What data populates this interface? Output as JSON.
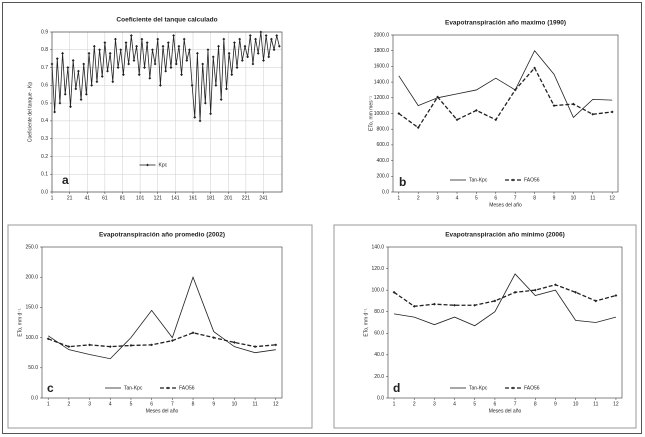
{
  "chart_data": [
    {
      "type": "line",
      "title": "Coeficiente del tanque calculado",
      "y_label": "Coeficiente del tanque - Kp",
      "panel": "a",
      "x": [
        1,
        4,
        7,
        10,
        13,
        16,
        19,
        22,
        25,
        28,
        31,
        34,
        37,
        40,
        43,
        46,
        49,
        52,
        55,
        58,
        61,
        64,
        67,
        70,
        73,
        76,
        79,
        82,
        85,
        88,
        91,
        94,
        97,
        100,
        103,
        106,
        109,
        112,
        115,
        118,
        121,
        124,
        127,
        130,
        133,
        136,
        139,
        142,
        145,
        148,
        151,
        154,
        157,
        160,
        163,
        166,
        169,
        172,
        175,
        178,
        181,
        184,
        187,
        190,
        193,
        196,
        199,
        202,
        205,
        208,
        211,
        214,
        217,
        220,
        223,
        226,
        229,
        232,
        235,
        238,
        241,
        244,
        247,
        250,
        253,
        256,
        259
      ],
      "series": [
        {
          "name": "Kpc",
          "color": "#222222",
          "dashed": false,
          "marker": true,
          "values": [
            0.72,
            0.45,
            0.75,
            0.5,
            0.78,
            0.55,
            0.7,
            0.48,
            0.74,
            0.58,
            0.68,
            0.52,
            0.72,
            0.55,
            0.78,
            0.6,
            0.82,
            0.62,
            0.8,
            0.65,
            0.84,
            0.68,
            0.78,
            0.62,
            0.86,
            0.7,
            0.8,
            0.66,
            0.84,
            0.72,
            0.88,
            0.74,
            0.82,
            0.66,
            0.86,
            0.7,
            0.84,
            0.64,
            0.8,
            0.72,
            0.86,
            0.6,
            0.82,
            0.68,
            0.84,
            0.7,
            0.88,
            0.72,
            0.82,
            0.66,
            0.86,
            0.74,
            0.8,
            0.6,
            0.42,
            0.78,
            0.4,
            0.72,
            0.5,
            0.8,
            0.44,
            0.76,
            0.6,
            0.82,
            0.52,
            0.86,
            0.58,
            0.78,
            0.66,
            0.84,
            0.7,
            0.86,
            0.74,
            0.82,
            0.76,
            0.88,
            0.72,
            0.86,
            0.78,
            0.9,
            0.74,
            0.88,
            0.76,
            0.86,
            0.8,
            0.88,
            0.82
          ]
        }
      ],
      "xlim": [
        1,
        262
      ],
      "xticks": [
        1,
        21,
        41,
        61,
        81,
        101,
        121,
        141,
        161,
        181,
        201,
        221,
        241
      ],
      "ylim": [
        0,
        0.9
      ],
      "yticks": [
        {
          "value": 0,
          "label": "0.0"
        },
        0.1,
        0.2,
        0.3,
        0.4,
        0.5,
        0.6,
        0.7,
        0.8,
        0.9
      ],
      "grid": true
    },
    {
      "type": "line",
      "title": "Evapotranspiración año maximo (1990)",
      "y_label": "ETo, mm mes⁻¹",
      "x_label": "Meses del año",
      "panel": "b",
      "x": [
        1,
        2,
        3,
        4,
        5,
        6,
        7,
        8,
        9,
        10,
        11,
        12
      ],
      "series": [
        {
          "name": "Tan-Kpc",
          "color": "#222222",
          "dashed": false,
          "marker": false,
          "values": [
            1480,
            1100,
            1200,
            1250,
            1300,
            1450,
            1300,
            1800,
            1500,
            950,
            1180,
            1170
          ]
        },
        {
          "name": "FAO56",
          "color": "#222222",
          "dashed": true,
          "marker": true,
          "values": [
            1000,
            820,
            1210,
            920,
            1040,
            920,
            1300,
            1580,
            1100,
            1120,
            990,
            1020
          ]
        }
      ],
      "xlim": [
        0.7,
        12.3
      ],
      "xticks": [
        1,
        2,
        3,
        4,
        5,
        6,
        7,
        8,
        9,
        10,
        11,
        12
      ],
      "ylim": [
        0,
        2000
      ],
      "yticks": [
        {
          "value": 0,
          "label": "0.0"
        },
        {
          "value": 200,
          "label": "200.0"
        },
        {
          "value": 400,
          "label": "400.0"
        },
        {
          "value": 600,
          "label": "600.0"
        },
        {
          "value": 800,
          "label": "800.0"
        },
        {
          "value": 1000,
          "label": "1000.0"
        },
        {
          "value": 1200,
          "label": "1200.0"
        },
        {
          "value": 1400,
          "label": "1400.0"
        },
        {
          "value": 1600,
          "label": "1600.0"
        },
        {
          "value": 1800,
          "label": "1800.0"
        },
        {
          "value": 2000,
          "label": "2000.0"
        }
      ],
      "grid": false
    },
    {
      "type": "line",
      "title": "Evapotranspiración año promedio (2002)",
      "y_label": "ETo, mm d⁻¹",
      "x_label": "Meses del año",
      "panel": "c",
      "x": [
        1,
        2,
        3,
        4,
        5,
        6,
        7,
        8,
        9,
        10,
        11,
        12
      ],
      "series": [
        {
          "name": "Tan-Kpc",
          "color": "#222222",
          "dashed": false,
          "marker": false,
          "values": [
            103,
            80,
            72,
            65,
            100,
            145,
            100,
            200,
            110,
            85,
            75,
            80
          ]
        },
        {
          "name": "FAO56",
          "color": "#222222",
          "dashed": true,
          "marker": true,
          "values": [
            98,
            85,
            88,
            85,
            87,
            88,
            95,
            108,
            100,
            92,
            85,
            88
          ]
        }
      ],
      "xlim": [
        0.7,
        12.3
      ],
      "xticks": [
        1,
        2,
        3,
        4,
        5,
        6,
        7,
        8,
        9,
        10,
        11,
        12
      ],
      "ylim": [
        0,
        250
      ],
      "yticks": [
        {
          "value": 0,
          "label": "0.0"
        },
        {
          "value": 50,
          "label": "50.0"
        },
        {
          "value": 100,
          "label": "100.0"
        },
        {
          "value": 150,
          "label": "150.0"
        },
        {
          "value": 200,
          "label": "200.0"
        },
        {
          "value": 250,
          "label": "250.0"
        }
      ],
      "grid": false
    },
    {
      "type": "line",
      "title": "Evapotranspiración año mínimo (2006)",
      "y_label": "ETo, mm d⁻¹",
      "x_label": "Meses del año",
      "panel": "d",
      "x": [
        1,
        2,
        3,
        4,
        5,
        6,
        7,
        8,
        9,
        10,
        11,
        12
      ],
      "series": [
        {
          "name": "Tan-Kpc",
          "color": "#222222",
          "dashed": false,
          "marker": false,
          "values": [
            78,
            75,
            68,
            75,
            67,
            80,
            115,
            95,
            100,
            72,
            70,
            75
          ]
        },
        {
          "name": "FAO56",
          "color": "#222222",
          "dashed": true,
          "marker": true,
          "values": [
            98,
            85,
            87,
            86,
            86,
            90,
            98,
            100,
            105,
            98,
            90,
            95
          ]
        }
      ],
      "xlim": [
        0.7,
        12.3
      ],
      "xticks": [
        1,
        2,
        3,
        4,
        5,
        6,
        7,
        8,
        9,
        10,
        11,
        12
      ],
      "ylim": [
        0,
        140
      ],
      "yticks": [
        {
          "value": 0,
          "label": "0.0"
        },
        {
          "value": 20,
          "label": "20.0"
        },
        {
          "value": 40,
          "label": "40.0"
        },
        {
          "value": 60,
          "label": "60.0"
        },
        {
          "value": 80,
          "label": "80.0"
        },
        {
          "value": 100,
          "label": "100.0"
        },
        {
          "value": 120,
          "label": "120.0"
        },
        {
          "value": 140,
          "label": "140.0"
        }
      ],
      "grid": false
    }
  ]
}
